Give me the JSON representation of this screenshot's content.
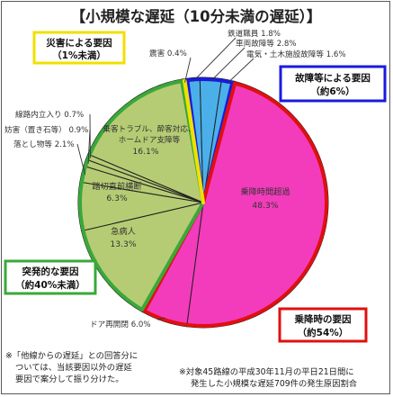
{
  "title": "【小規模な遅延（10分未満の遅延）】",
  "chart_data": {
    "type": "pie",
    "unit": "%",
    "slices": [
      {
        "name": "鉄道職員",
        "value": 1.8,
        "color": "#4bb0ea"
      },
      {
        "name": "車両故障等",
        "value": 2.8,
        "color": "#4bb0ea"
      },
      {
        "name": "電気・土木施設故障等",
        "value": 1.6,
        "color": "#4bb0ea"
      },
      {
        "name": "乗降時間超過",
        "value": 48.3,
        "color": "#f23cbc"
      },
      {
        "name": "ドア再開閉",
        "value": 6.0,
        "color": "#f23cbc"
      },
      {
        "name": "急病人",
        "value": 13.3,
        "color": "#b6cc74"
      },
      {
        "name": "踏切直前横断",
        "value": 6.3,
        "color": "#b6cc74"
      },
      {
        "name": "落とし物等",
        "value": 2.1,
        "color": "#b6cc74"
      },
      {
        "name": "妨害（置き石等）",
        "value": 0.9,
        "color": "#b6cc74"
      },
      {
        "name": "線路内立入り",
        "value": 0.7,
        "color": "#b6cc74"
      },
      {
        "name": "乗客トラブル、酔客対応、ホームドア支障等",
        "value": 16.1,
        "color": "#b6cc74"
      },
      {
        "name": "震害",
        "value": 0.4,
        "color": "#f0e040"
      }
    ],
    "groups": [
      {
        "name": "災害による要因",
        "share": "（1%未満）",
        "color": "#f0e000"
      },
      {
        "name": "故障等による要因",
        "share": "（約6%）",
        "color": "#1a1ae0"
      },
      {
        "name": "乗降時の要因",
        "share": "（約54%）",
        "color": "#e01010"
      },
      {
        "name": "突発的な要因",
        "share": "（約40%未満）",
        "color": "#3aa83a"
      }
    ]
  },
  "labels": {
    "denki": "電気・土木施設故障等 1.6%",
    "sharyo": "車両故障等 2.8%",
    "shokuin": "鉄道職員 1.8%",
    "shingai": "震害 0.4%",
    "senro": "線路内立入り 0.7%",
    "bougai": "妨害（置き石等） 0.9%",
    "otoshimono": "落とし物等 2.1%",
    "jokyaku1": "乗客トラブル、酔客対応、",
    "jokyaku2": "ホームドア支障等",
    "jokyaku3": "16.1%",
    "fumikiri1": "踏切直前横断",
    "fumikiri2": "6.3%",
    "kyubyo1": "急病人",
    "kyubyo2": "13.3%",
    "jokou1": "乗降時間超過",
    "jokou2": "48.3%",
    "door": "ドア再開閉 6.0%"
  },
  "notes": {
    "left1": "※「他線からの遅延」との回答分に",
    "left2": "ついては、当該要因以外の遅延",
    "left3": "要因で案分して振り分けた。",
    "right1": "※対象45路線の平成30年11月の平日21日間に",
    "right2": "発生した小規模な遅延709件の発生原因割合"
  }
}
